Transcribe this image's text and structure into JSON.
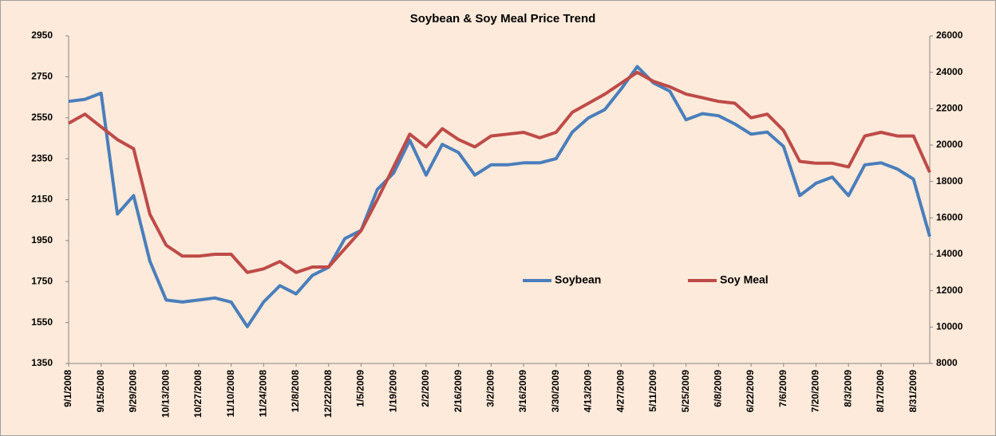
{
  "chart_data": {
    "type": "line",
    "title": "Soybean & Soy Meal Price Trend",
    "categories": [
      "9/1/2008",
      null,
      "9/15/2008",
      null,
      "9/29/2008",
      null,
      "10/13/2008",
      null,
      "10/27/2008",
      null,
      "11/10/2008",
      null,
      "11/24/2008",
      null,
      "12/8/2008",
      null,
      "12/22/2008",
      null,
      "1/5/2009",
      null,
      "1/19/2009",
      null,
      "2/2/2009",
      null,
      "2/16/2009",
      null,
      "3/2/2009",
      null,
      "3/16/2009",
      null,
      "3/30/2009",
      null,
      "4/13/2009",
      null,
      "4/27/2009",
      null,
      "5/11/2009",
      null,
      "5/25/2009",
      null,
      "6/8/2009",
      null,
      "6/22/2009",
      null,
      "7/6/2009",
      null,
      "7/20/2009",
      null,
      "8/3/2009",
      null,
      "8/17/2009",
      null,
      "8/31/2009",
      null
    ],
    "series": [
      {
        "name": "Soybean",
        "color": "#4a7ebb",
        "values": [
          2630,
          2640,
          2670,
          2080,
          2170,
          1850,
          1660,
          1650,
          1660,
          1670,
          1650,
          1530,
          1650,
          1730,
          1690,
          1780,
          1820,
          1960,
          2000,
          2200,
          2280,
          2440,
          2270,
          2420,
          2380,
          2270,
          2320,
          2320,
          2330,
          2330,
          2350,
          2480,
          2550,
          2590,
          2690,
          2800,
          2720,
          2680,
          2540,
          2570,
          2560,
          2520,
          2470,
          2480,
          2410,
          2170,
          2230,
          2260,
          2170,
          2320,
          2330,
          2300,
          2250,
          1970
        ]
      },
      {
        "name": "Soy Meal",
        "color": "#be4b48",
        "axis": "y2",
        "values": [
          21200,
          21700,
          21000,
          20300,
          19800,
          16200,
          14500,
          13900,
          13900,
          14000,
          14000,
          13000,
          13200,
          13600,
          13000,
          13300,
          13300,
          14300,
          15300,
          17000,
          18800,
          20600,
          19900,
          20900,
          20300,
          19900,
          20500,
          20600,
          20700,
          20400,
          20700,
          21800,
          22300,
          22800,
          23400,
          24000,
          23500,
          23200,
          22800,
          22600,
          22400,
          22300,
          21500,
          21700,
          20800,
          19100,
          19000,
          19000,
          18800,
          20500,
          20700,
          20500,
          20500,
          18500
        ]
      }
    ],
    "ylim": [
      1350,
      2950
    ],
    "yticks": [
      1350,
      1550,
      1750,
      1950,
      2150,
      2350,
      2550,
      2750,
      2950
    ],
    "y2lim": [
      8000,
      26000
    ],
    "y2ticks": [
      8000,
      10000,
      12000,
      14000,
      16000,
      18000,
      20000,
      22000,
      24000,
      26000
    ],
    "grid": false,
    "legend": "center"
  }
}
